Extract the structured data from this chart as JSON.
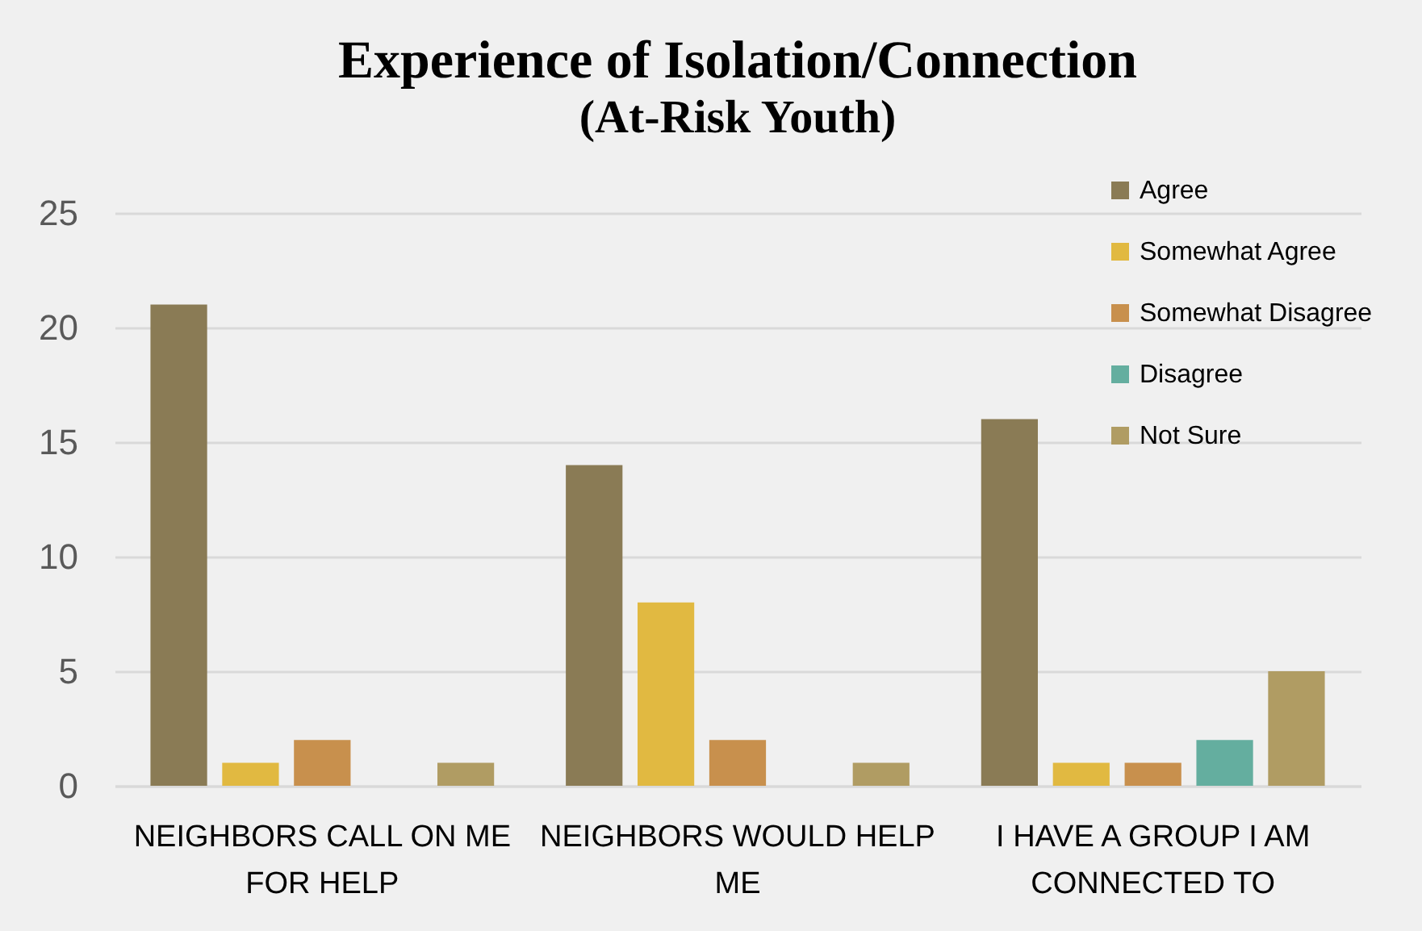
{
  "chart_data": {
    "type": "bar",
    "title": "Experience of Isolation/Connection",
    "subtitle": "(At-Risk Youth)",
    "categories": [
      "NEIGHBORS CALL ON ME FOR HELP",
      "NEIGHBORS WOULD HELP ME",
      "I HAVE A GROUP I AM CONNECTED TO"
    ],
    "series": [
      {
        "name": "Agree",
        "color": "#8a7b55",
        "values": [
          21,
          14,
          16
        ]
      },
      {
        "name": "Somewhat Agree",
        "color": "#e1b941",
        "values": [
          1,
          8,
          1
        ]
      },
      {
        "name": "Somewhat Disagree",
        "color": "#c8904d",
        "values": [
          2,
          2,
          1
        ]
      },
      {
        "name": "Disagree",
        "color": "#64ae9f",
        "values": [
          null,
          null,
          2
        ]
      },
      {
        "name": "Not Sure",
        "color": "#b09c63",
        "values": [
          1,
          1,
          5
        ]
      }
    ],
    "ylim": [
      0,
      25
    ],
    "yticks": [
      0,
      5,
      10,
      15,
      20,
      25
    ],
    "grid": "y",
    "legend": "top right"
  }
}
